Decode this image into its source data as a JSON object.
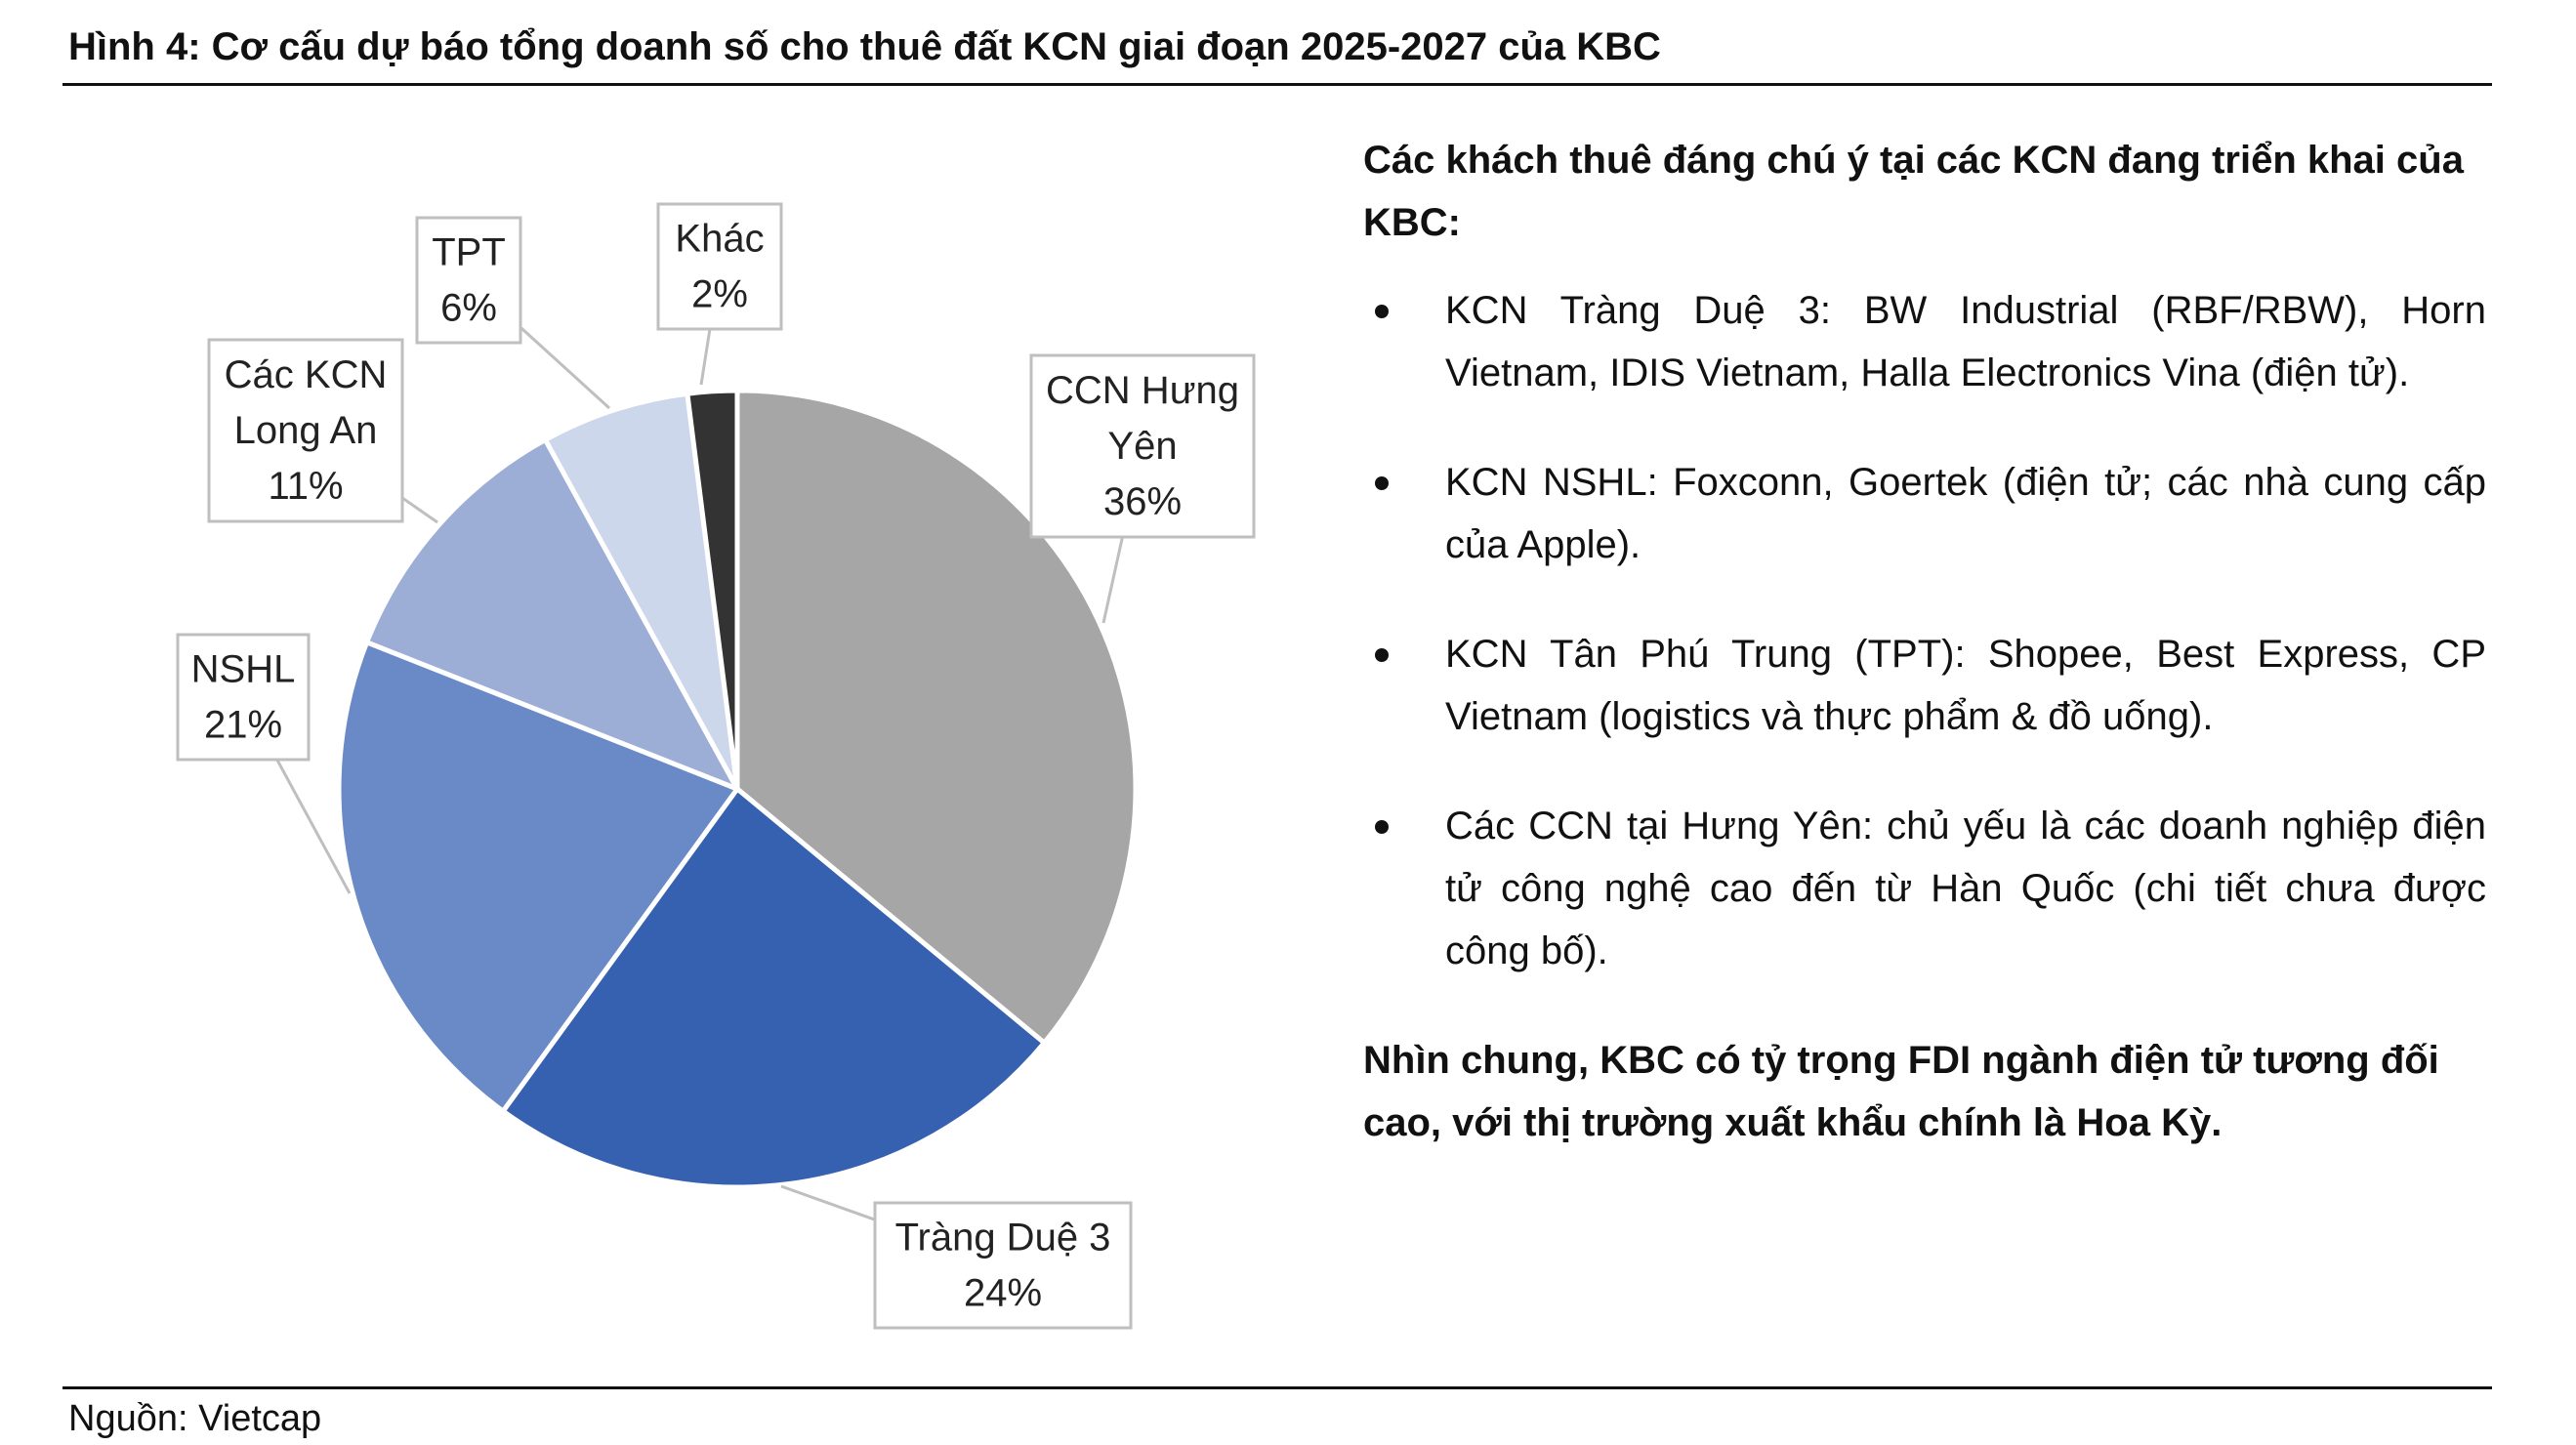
{
  "figure": {
    "title": "Hình 4: Cơ cấu dự báo tổng doanh số cho thuê đất KCN giai đoạn 2025-2027 của KBC",
    "source": "Nguồn: Vietcap"
  },
  "chart_data": {
    "type": "pie",
    "title": "",
    "slices": [
      {
        "label_lines": [
          "CCN Hưng",
          "Yên"
        ],
        "value": 36,
        "value_label": "36%",
        "color": "#a6a6a6"
      },
      {
        "label_lines": [
          "Tràng Duệ 3"
        ],
        "value": 24,
        "value_label": "24%",
        "color": "#3660b0"
      },
      {
        "label_lines": [
          "NSHL"
        ],
        "value": 21,
        "value_label": "21%",
        "color": "#6a8ac7"
      },
      {
        "label_lines": [
          "Các KCN",
          "Long An"
        ],
        "value": 11,
        "value_label": "11%",
        "color": "#9caed6"
      },
      {
        "label_lines": [
          "TPT"
        ],
        "value": 6,
        "value_label": "6%",
        "color": "#cdd7eb"
      },
      {
        "label_lines": [
          "Khác"
        ],
        "value": 2,
        "value_label": "2%",
        "color": "#333333"
      }
    ],
    "start_angle_deg": 0,
    "direction": "clockwise",
    "legend": "none (callout labels)"
  },
  "commentary": {
    "heading": "Các khách thuê đáng chú ý tại các KCN đang triển khai của KBC:",
    "bullets": [
      "KCN Tràng Duệ 3: BW Industrial (RBF/RBW), Horn Vietnam, IDIS Vietnam, Halla Electronics Vina (điện tử).",
      "KCN NSHL: Foxconn, Goertek (điện tử; các nhà cung cấp của Apple).",
      "KCN Tân Phú Trung (TPT): Shopee, Best Express, CP Vietnam (logistics và thực phẩm & đồ uống).",
      "Các CCN tại Hưng Yên: chủ yếu là các doanh nghiệp điện tử công nghệ cao đến từ Hàn Quốc (chi tiết chưa được công bố)."
    ],
    "conclusion": "Nhìn chung, KBC có tỷ trọng FDI ngành điện tử tương đối cao, với thị trường xuất khẩu chính là Hoa Kỳ."
  }
}
